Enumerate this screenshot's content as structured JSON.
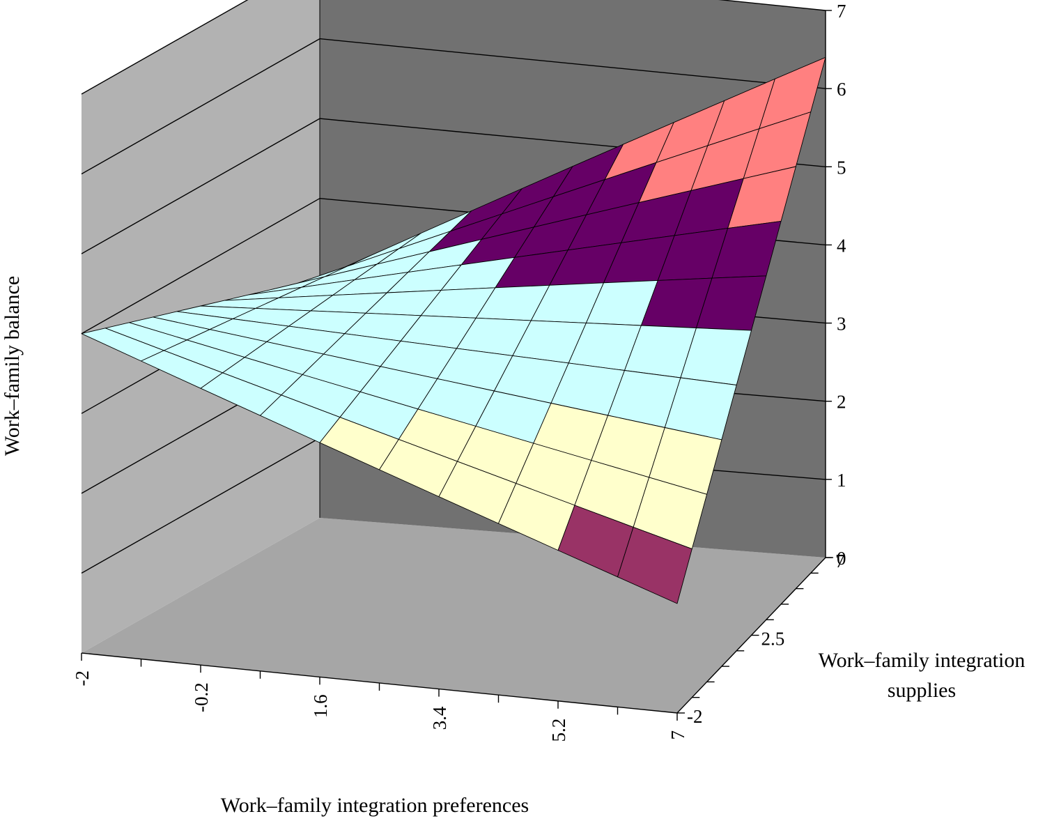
{
  "chart_data": {
    "type": "surface",
    "title": "",
    "xlabel": "Work–family integration preferences",
    "ylabel_line1": "Work–family integration",
    "ylabel_line2": "supplies",
    "zlabel": "Work–family balance",
    "x_ticks": [
      "-2",
      "-0.2",
      "1.6",
      "3.4",
      "5.2",
      "7"
    ],
    "y_ticks": [
      "-2",
      "2.5",
      "7"
    ],
    "z_ticks": [
      "0",
      "1",
      "2",
      "3",
      "4",
      "5",
      "6",
      "7"
    ],
    "x_range": [
      -2,
      7
    ],
    "y_range": [
      -2,
      7
    ],
    "z_range": [
      0,
      7
    ],
    "grid": true,
    "grid_points": {
      "x": [
        -2,
        -1.1,
        -0.2,
        0.7,
        1.6,
        2.5,
        3.4,
        4.3,
        5.2,
        6.1,
        7
      ],
      "y": [
        -2,
        -1.1,
        -0.2,
        0.7,
        1.6,
        2.5,
        3.4,
        4.3,
        5.2,
        6.1,
        7
      ]
    },
    "surface_corners": {
      "x_-2_y_-2": 4.0,
      "x_7_y_-2": 1.4,
      "x_-2_y_7": 3.0,
      "x_7_y_7": 6.4
    },
    "color_bands": [
      {
        "range": [
          0,
          1
        ],
        "color": "#9999ff"
      },
      {
        "range": [
          1,
          2
        ],
        "color": "#993366"
      },
      {
        "range": [
          2,
          3
        ],
        "color": "#ffffcc"
      },
      {
        "range": [
          3,
          4
        ],
        "color": "#ccffff"
      },
      {
        "range": [
          4,
          5
        ],
        "color": "#660066"
      },
      {
        "range": [
          5,
          6
        ],
        "color": "#ff8080"
      },
      {
        "range": [
          6,
          7
        ],
        "color": "#9999ff"
      }
    ],
    "colors": {
      "back_wall": "#717171",
      "side_wall": "#b2b2b2",
      "floor": "#a6a6a6"
    }
  }
}
